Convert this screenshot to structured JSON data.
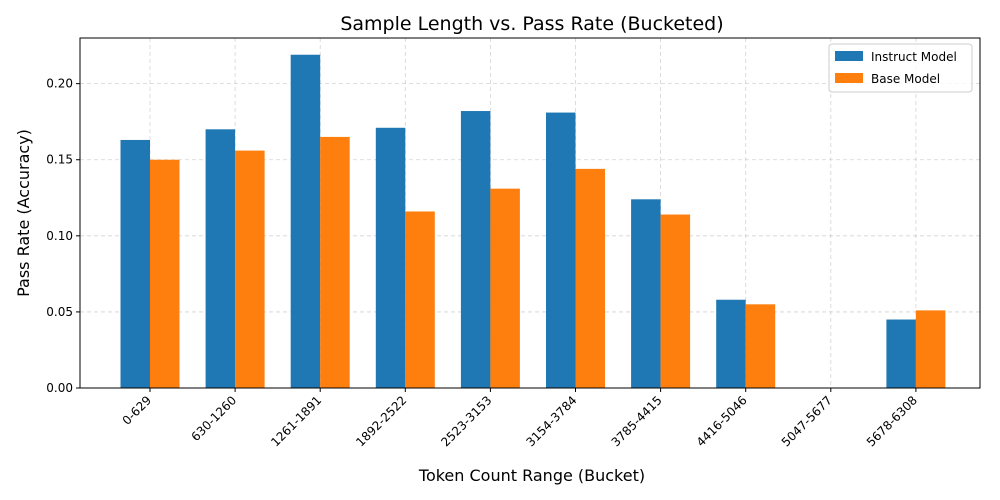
{
  "chart_data": {
    "type": "bar",
    "title": "Sample Length vs. Pass Rate (Bucketed)",
    "xlabel": "Token Count Range (Bucket)",
    "ylabel": "Pass Rate (Accuracy)",
    "categories": [
      "0-629",
      "630-1260",
      "1261-1891",
      "1892-2522",
      "2523-3153",
      "3154-3784",
      "3785-4415",
      "4416-5046",
      "5047-5677",
      "5678-6308"
    ],
    "series": [
      {
        "name": "Instruct Model",
        "color": "#1f77b4",
        "values": [
          0.163,
          0.17,
          0.219,
          0.171,
          0.182,
          0.181,
          0.124,
          0.058,
          0.0,
          0.045
        ]
      },
      {
        "name": "Base Model",
        "color": "#ff7f0e",
        "values": [
          0.15,
          0.156,
          0.165,
          0.116,
          0.131,
          0.144,
          0.114,
          0.055,
          0.0,
          0.051
        ]
      }
    ],
    "ylim": [
      0,
      0.23
    ],
    "yticks": [
      "0.00",
      "0.05",
      "0.10",
      "0.15",
      "0.20"
    ],
    "grid": true,
    "legend_position": "top-right"
  }
}
